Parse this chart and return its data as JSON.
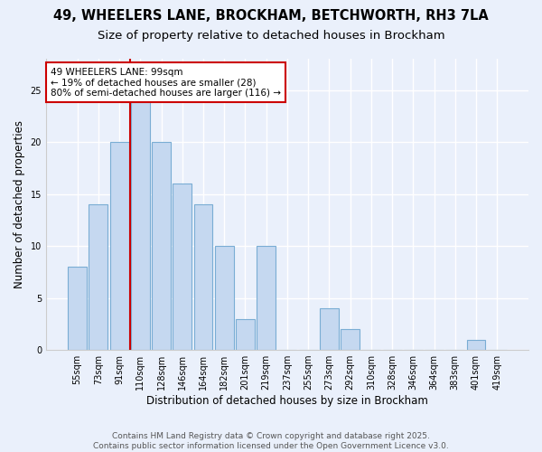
{
  "title": "49, WHEELERS LANE, BROCKHAM, BETCHWORTH, RH3 7LA",
  "subtitle": "Size of property relative to detached houses in Brockham",
  "xlabel": "Distribution of detached houses by size in Brockham",
  "ylabel": "Number of detached properties",
  "categories": [
    "55sqm",
    "73sqm",
    "91sqm",
    "110sqm",
    "128sqm",
    "146sqm",
    "164sqm",
    "182sqm",
    "201sqm",
    "219sqm",
    "237sqm",
    "255sqm",
    "273sqm",
    "292sqm",
    "310sqm",
    "328sqm",
    "346sqm",
    "364sqm",
    "383sqm",
    "401sqm",
    "419sqm"
  ],
  "values": [
    8,
    14,
    20,
    24,
    20,
    16,
    14,
    10,
    3,
    10,
    0,
    0,
    4,
    2,
    0,
    0,
    0,
    0,
    0,
    1,
    0
  ],
  "bar_color": "#c5d8f0",
  "bar_edge_color": "#7aadd4",
  "background_color": "#eaf0fb",
  "grid_color": "#ffffff",
  "annotation_text": "49 WHEELERS LANE: 99sqm\n← 19% of detached houses are smaller (28)\n80% of semi-detached houses are larger (116) →",
  "annotation_box_color": "#ffffff",
  "annotation_box_edge": "#cc0000",
  "redline_color": "#cc0000",
  "ylim": [
    0,
    28
  ],
  "yticks": [
    0,
    5,
    10,
    15,
    20,
    25
  ],
  "footer": "Contains HM Land Registry data © Crown copyright and database right 2025.\nContains public sector information licensed under the Open Government Licence v3.0.",
  "title_fontsize": 10.5,
  "subtitle_fontsize": 9.5,
  "xlabel_fontsize": 8.5,
  "ylabel_fontsize": 8.5,
  "tick_fontsize": 7,
  "annotation_fontsize": 7.5,
  "footer_fontsize": 6.5
}
